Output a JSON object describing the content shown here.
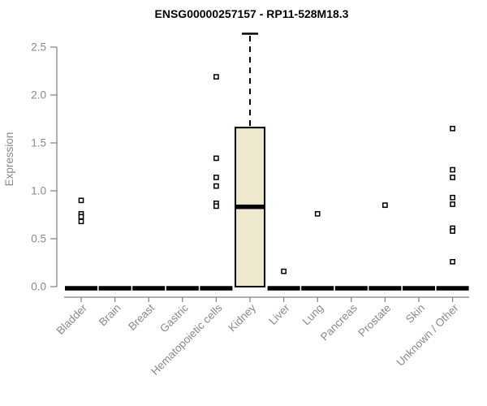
{
  "title": "ENSG00000257157 - RP11-528M18.3",
  "chart_data": {
    "type": "boxplot",
    "title": "ENSG00000257157 - RP11-528M18.3",
    "xlabel": "",
    "ylabel": "Expression",
    "ylim": [
      0.0,
      2.5
    ],
    "yticks": [
      0.0,
      0.5,
      1.0,
      1.5,
      2.0,
      2.5
    ],
    "grid": false,
    "legend": "none",
    "categories": [
      "Bladder",
      "Brain",
      "Breast",
      "Gastric",
      "Hematopoietic cells",
      "Kidney",
      "Liver",
      "Lung",
      "Pancreas",
      "Prostate",
      "Skin",
      "Unknown / Other"
    ],
    "boxes": [
      {
        "category": "Bladder",
        "whisker_low": 0,
        "q1": 0,
        "median": 0,
        "q3": 0,
        "whisker_high": 0,
        "outliers": [
          0.9,
          0.76,
          0.73,
          0.68
        ]
      },
      {
        "category": "Brain",
        "whisker_low": 0,
        "q1": 0,
        "median": 0,
        "q3": 0,
        "whisker_high": 0,
        "outliers": []
      },
      {
        "category": "Breast",
        "whisker_low": 0,
        "q1": 0,
        "median": 0,
        "q3": 0,
        "whisker_high": 0,
        "outliers": []
      },
      {
        "category": "Gastric",
        "whisker_low": 0,
        "q1": 0,
        "median": 0,
        "q3": 0,
        "whisker_high": 0,
        "outliers": []
      },
      {
        "category": "Hematopoietic cells",
        "whisker_low": 0,
        "q1": 0,
        "median": 0,
        "q3": 0,
        "whisker_high": 0,
        "outliers": [
          2.19,
          1.34,
          1.14,
          1.05,
          0.87,
          0.84
        ]
      },
      {
        "category": "Kidney",
        "whisker_low": 0,
        "q1": 0,
        "median": 0.85,
        "q3": 1.66,
        "whisker_high": 2.64,
        "outliers": []
      },
      {
        "category": "Liver",
        "whisker_low": 0,
        "q1": 0,
        "median": 0,
        "q3": 0,
        "whisker_high": 0,
        "outliers": [
          0.16
        ]
      },
      {
        "category": "Lung",
        "whisker_low": 0,
        "q1": 0,
        "median": 0,
        "q3": 0,
        "whisker_high": 0,
        "outliers": [
          0.76
        ]
      },
      {
        "category": "Pancreas",
        "whisker_low": 0,
        "q1": 0,
        "median": 0,
        "q3": 0,
        "whisker_high": 0,
        "outliers": []
      },
      {
        "category": "Prostate",
        "whisker_low": 0,
        "q1": 0,
        "median": 0,
        "q3": 0,
        "whisker_high": 0,
        "outliers": [
          0.85
        ]
      },
      {
        "category": "Skin",
        "whisker_low": 0,
        "q1": 0,
        "median": 0,
        "q3": 0,
        "whisker_high": 0,
        "outliers": []
      },
      {
        "category": "Unknown / Other",
        "whisker_low": 0,
        "q1": 0,
        "median": 0,
        "q3": 0,
        "whisker_high": 0,
        "outliers": [
          1.65,
          1.22,
          1.14,
          0.93,
          0.86,
          0.61,
          0.58,
          0.26
        ]
      }
    ],
    "colors": {
      "box_fill": "#EEE8CD",
      "box_stroke": "#000000",
      "median": "#000000",
      "outlier_stroke": "#000000",
      "outlier_fill": "#ffffff",
      "axis": "#7f7f7f",
      "tick_label": "#8a8a8a",
      "title": "#000000",
      "background": "#ffffff"
    }
  }
}
